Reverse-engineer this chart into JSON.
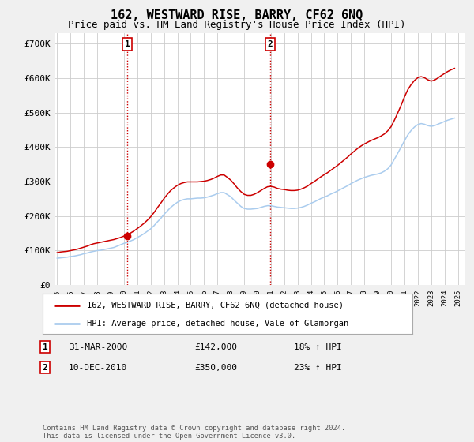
{
  "title": "162, WESTWARD RISE, BARRY, CF62 6NQ",
  "subtitle": "Price paid vs. HM Land Registry's House Price Index (HPI)",
  "title_fontsize": 11,
  "subtitle_fontsize": 9,
  "ylabel_ticks": [
    "£0",
    "£100K",
    "£200K",
    "£300K",
    "£400K",
    "£500K",
    "£600K",
    "£700K"
  ],
  "ytick_values": [
    0,
    100000,
    200000,
    300000,
    400000,
    500000,
    600000,
    700000
  ],
  "ylim": [
    0,
    730000
  ],
  "xlim_start": 1994.8,
  "xlim_end": 2025.5,
  "background_color": "#f0f0f0",
  "plot_bg_color": "#ffffff",
  "grid_color": "#cccccc",
  "red_line_color": "#cc0000",
  "blue_line_color": "#aaccee",
  "vline_color": "#cc0000",
  "vline_style": ":",
  "purchase1_x": 2000.25,
  "purchase1_y": 142000,
  "purchase1_label": "1",
  "purchase2_x": 2010.95,
  "purchase2_y": 350000,
  "purchase2_label": "2",
  "legend_red_label": "162, WESTWARD RISE, BARRY, CF62 6NQ (detached house)",
  "legend_blue_label": "HPI: Average price, detached house, Vale of Glamorgan",
  "table_rows": [
    {
      "num": "1",
      "date": "31-MAR-2000",
      "price": "£142,000",
      "change": "18% ↑ HPI"
    },
    {
      "num": "2",
      "date": "10-DEC-2010",
      "price": "£350,000",
      "change": "23% ↑ HPI"
    }
  ],
  "footer": "Contains HM Land Registry data © Crown copyright and database right 2024.\nThis data is licensed under the Open Government Licence v3.0.",
  "hpi_years": [
    1995.0,
    1995.25,
    1995.5,
    1995.75,
    1996.0,
    1996.25,
    1996.5,
    1996.75,
    1997.0,
    1997.25,
    1997.5,
    1997.75,
    1998.0,
    1998.25,
    1998.5,
    1998.75,
    1999.0,
    1999.25,
    1999.5,
    1999.75,
    2000.0,
    2000.25,
    2000.5,
    2000.75,
    2001.0,
    2001.25,
    2001.5,
    2001.75,
    2002.0,
    2002.25,
    2002.5,
    2002.75,
    2003.0,
    2003.25,
    2003.5,
    2003.75,
    2004.0,
    2004.25,
    2004.5,
    2004.75,
    2005.0,
    2005.25,
    2005.5,
    2005.75,
    2006.0,
    2006.25,
    2006.5,
    2006.75,
    2007.0,
    2007.25,
    2007.5,
    2007.75,
    2008.0,
    2008.25,
    2008.5,
    2008.75,
    2009.0,
    2009.25,
    2009.5,
    2009.75,
    2010.0,
    2010.25,
    2010.5,
    2010.75,
    2011.0,
    2011.25,
    2011.5,
    2011.75,
    2012.0,
    2012.25,
    2012.5,
    2012.75,
    2013.0,
    2013.25,
    2013.5,
    2013.75,
    2014.0,
    2014.25,
    2014.5,
    2014.75,
    2015.0,
    2015.25,
    2015.5,
    2015.75,
    2016.0,
    2016.25,
    2016.5,
    2016.75,
    2017.0,
    2017.25,
    2017.5,
    2017.75,
    2018.0,
    2018.25,
    2018.5,
    2018.75,
    2019.0,
    2019.25,
    2019.5,
    2019.75,
    2020.0,
    2020.25,
    2020.5,
    2020.75,
    2021.0,
    2021.25,
    2021.5,
    2021.75,
    2022.0,
    2022.25,
    2022.5,
    2022.75,
    2023.0,
    2023.25,
    2023.5,
    2023.75,
    2024.0,
    2024.25,
    2024.5,
    2024.75
  ],
  "hpi_values": [
    78000,
    79000,
    80000,
    81000,
    83000,
    84000,
    86000,
    88000,
    91000,
    93000,
    96000,
    98000,
    100000,
    101000,
    103000,
    105000,
    107000,
    109000,
    113000,
    117000,
    121000,
    124000,
    128000,
    132000,
    138000,
    143000,
    149000,
    156000,
    163000,
    172000,
    183000,
    193000,
    205000,
    215000,
    225000,
    233000,
    240000,
    245000,
    248000,
    250000,
    250000,
    251000,
    252000,
    252000,
    253000,
    255000,
    258000,
    261000,
    265000,
    268000,
    268000,
    262000,
    256000,
    246000,
    237000,
    228000,
    222000,
    220000,
    220000,
    221000,
    222000,
    225000,
    228000,
    230000,
    230000,
    228000,
    226000,
    225000,
    224000,
    223000,
    222000,
    222000,
    223000,
    225000,
    228000,
    232000,
    237000,
    241000,
    246000,
    251000,
    255000,
    259000,
    264000,
    268000,
    273000,
    278000,
    283000,
    288000,
    294000,
    299000,
    304000,
    308000,
    312000,
    315000,
    318000,
    320000,
    322000,
    325000,
    330000,
    337000,
    348000,
    365000,
    382000,
    400000,
    418000,
    435000,
    448000,
    458000,
    465000,
    468000,
    466000,
    462000,
    460000,
    462000,
    466000,
    470000,
    474000,
    478000,
    481000,
    484000
  ],
  "red_values": [
    94000,
    96000,
    97000,
    98000,
    100000,
    102000,
    104000,
    107000,
    110000,
    113000,
    117000,
    120000,
    122000,
    124000,
    126000,
    128000,
    130000,
    132000,
    135000,
    138000,
    142000,
    146000,
    151000,
    157000,
    164000,
    171000,
    179000,
    188000,
    198000,
    210000,
    224000,
    237000,
    251000,
    263000,
    274000,
    282000,
    289000,
    294000,
    297000,
    299000,
    299000,
    299000,
    299000,
    300000,
    301000,
    303000,
    306000,
    310000,
    315000,
    319000,
    319000,
    312000,
    304000,
    293000,
    281000,
    271000,
    263000,
    260000,
    260000,
    263000,
    268000,
    274000,
    280000,
    285000,
    286000,
    284000,
    280000,
    278000,
    277000,
    275000,
    274000,
    274000,
    275000,
    278000,
    282000,
    287000,
    294000,
    300000,
    307000,
    314000,
    320000,
    326000,
    333000,
    340000,
    347000,
    355000,
    363000,
    371000,
    380000,
    388000,
    396000,
    403000,
    409000,
    414000,
    419000,
    423000,
    427000,
    432000,
    438000,
    447000,
    459000,
    478000,
    499000,
    521000,
    545000,
    566000,
    581000,
    593000,
    601000,
    604000,
    601000,
    595000,
    591000,
    594000,
    600000,
    607000,
    613000,
    619000,
    624000,
    628000
  ]
}
